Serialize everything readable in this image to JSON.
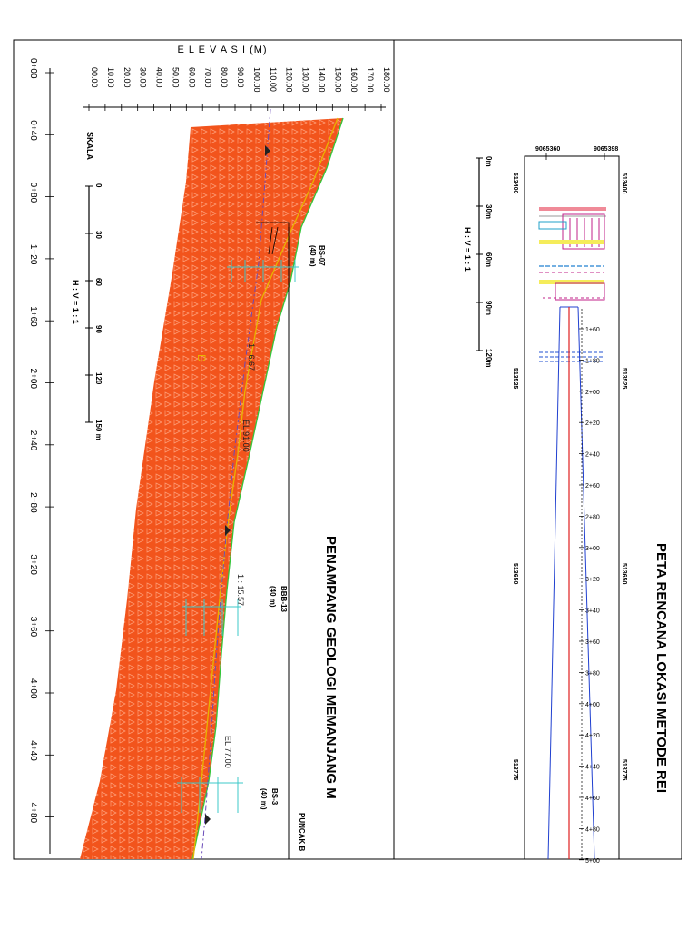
{
  "left_panel": {
    "title": "PENAMPANG GEOLOGI MEMANJANG M",
    "elevation_axis_label": "E L E V A S I   (M)",
    "elevation_ticks": [
      "00.00",
      "10.00",
      "20.00",
      "30.00",
      "40.00",
      "50.00",
      "60.00",
      "70.00",
      "80.00",
      "90.00",
      "100.00",
      "110.00",
      "120.00",
      "130.00",
      "140.00",
      "150.00",
      "160.00",
      "170.00",
      "180.00"
    ],
    "station_ticks": [
      "0+00",
      "0+40",
      "0+80",
      "1+20",
      "1+60",
      "2+00",
      "2+40",
      "2+80",
      "3+20",
      "3+60",
      "4+00",
      "4+40",
      "4+80"
    ],
    "scale": {
      "title": "SKALA",
      "ticks": [
        "0",
        "30",
        "60",
        "90",
        "120",
        "150 m"
      ],
      "ratio": "H : V = 1 : 1"
    },
    "boreholes": [
      {
        "name": "BS-07",
        "depth": "(40 m)"
      },
      {
        "name": "BBB-13",
        "depth": "(40 m)"
      },
      {
        "name": "BS-3",
        "depth": "(40 m)"
      }
    ],
    "slope_labels": [
      "1 : 6.67",
      "1 : 15.57"
    ],
    "elevation_labels": [
      "EL 91.00",
      "EL 77.00"
    ],
    "puncak_label": "PUNCAK B",
    "marker_label": "D",
    "colors": {
      "rock": "#f2541c",
      "rock_pattern": "#ffa07a",
      "surface": "#36c53a",
      "design": "#e8b400",
      "borehole": "#3cc8c8",
      "centerline": "#6a4bb8"
    }
  },
  "right_panel": {
    "title": "PETA RENCANA LOKASI METODE REI",
    "coord_top": [
      "9065360",
      "9065398"
    ],
    "coord_side": [
      "513400",
      "513525",
      "513650",
      "513775"
    ],
    "scale": {
      "ticks": [
        "0m",
        "30m",
        "60m",
        "90m",
        "120m"
      ],
      "ratio": "H : V = 1 : 1"
    },
    "stations": [
      "1+60",
      "1+80",
      "2+00",
      "2+20",
      "2+40",
      "2+60",
      "2+80",
      "3+00",
      "3+20",
      "3+40",
      "3+60",
      "3+80",
      "4+00",
      "4+20",
      "4+40",
      "4+60",
      "4+80",
      "5+00"
    ]
  }
}
